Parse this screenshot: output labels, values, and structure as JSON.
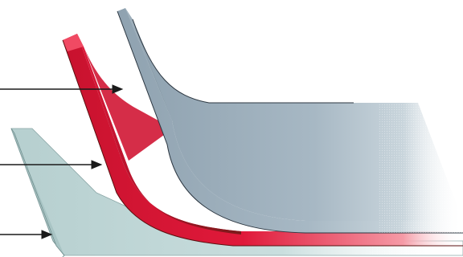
{
  "diagram": {
    "description_free": true,
    "layers": [
      {
        "name": "top-layer",
        "color": "#95a7b4",
        "edge_color": "#b6c7d2"
      },
      {
        "name": "middle-layer",
        "color": "#e0193a",
        "edge_color": "#f2677c"
      },
      {
        "name": "bottom-layer",
        "color": "#bed5d5",
        "edge_color": "#d8e8e8"
      }
    ],
    "pointer_arrows": [
      {
        "target": "top-layer",
        "color": "#1a1a1a"
      },
      {
        "target": "middle-layer",
        "color": "#1a1a1a"
      },
      {
        "target": "bottom-layer",
        "color": "#1a1a1a"
      }
    ]
  }
}
